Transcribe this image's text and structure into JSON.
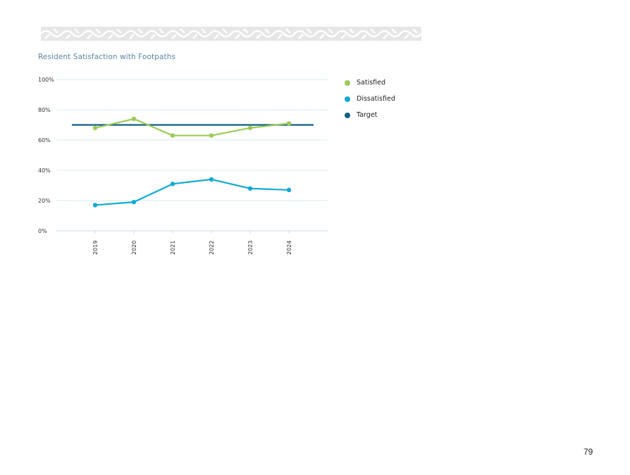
{
  "colors": {
    "satisfied": "#99cc55",
    "dissatisfied": "#11aad4",
    "target": "#0e5f85",
    "grid": "#d8ebf2",
    "title": "#5a86a8"
  },
  "page": {
    "number": "79"
  },
  "chart_data": {
    "type": "line",
    "title": "Resident Satisfaction with Footpaths",
    "xlabel": "",
    "ylabel": "",
    "x": [
      "2019",
      "2020",
      "2021",
      "2022",
      "2023",
      "2024"
    ],
    "ylim": [
      0,
      100
    ],
    "yticks": [
      "0%",
      "20%",
      "40%",
      "60%",
      "80%",
      "100%"
    ],
    "grid": true,
    "legend_position": "right",
    "series": [
      {
        "name": "Satisfied",
        "values": [
          68,
          74,
          63,
          63,
          68,
          71
        ],
        "markers": true
      },
      {
        "name": "Dissatisfied",
        "values": [
          17,
          19,
          31,
          34,
          28,
          27
        ],
        "markers": true
      },
      {
        "name": "Target",
        "values": [
          70,
          70,
          70,
          70,
          70,
          70
        ],
        "markers": false
      }
    ]
  }
}
